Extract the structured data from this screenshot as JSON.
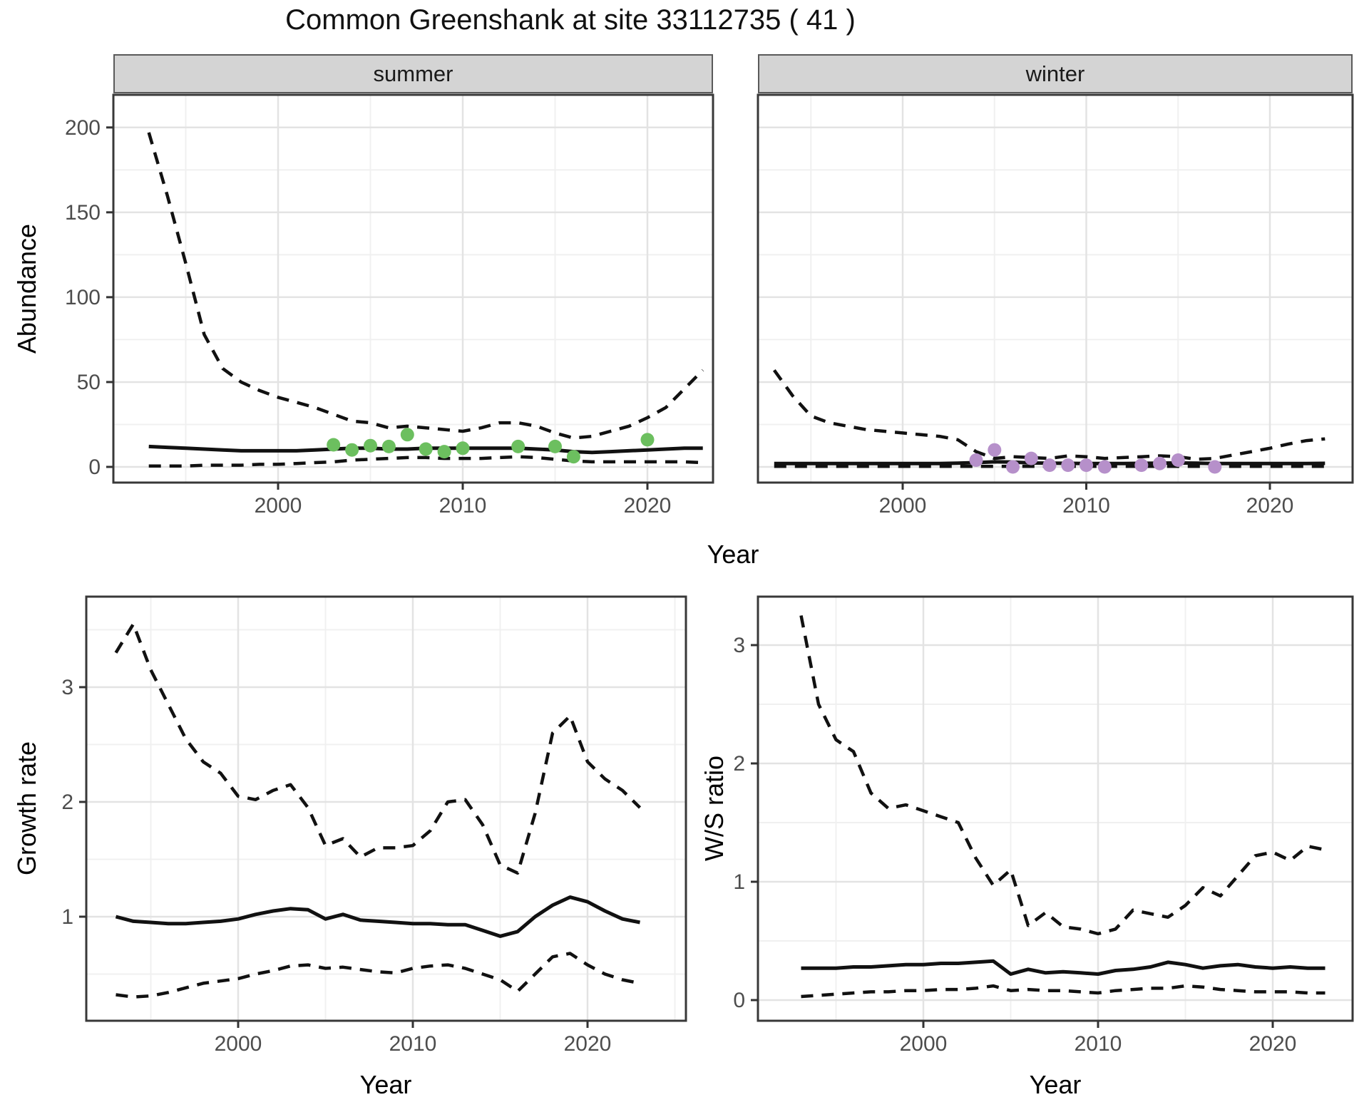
{
  "title": "Common Greenshank at site 33112735 ( 41 )",
  "facets": {
    "summer": "summer",
    "winter": "winter"
  },
  "axis_titles": {
    "abundance": "Abundance",
    "year_top": "Year",
    "growth": "Growth rate",
    "ws": "W/S ratio",
    "year_growth": "Year",
    "year_ws": "Year"
  },
  "colors": {
    "summer_points": "#6CBF5F",
    "winter_points": "#B690CA",
    "line": "#111111",
    "grid_major": "#e3e3e3",
    "grid_minor": "#f0f0f0",
    "panel_border": "#383838",
    "strip_fill": "#d4d4d4",
    "tick_text": "#4d4d4d"
  },
  "chart_data": [
    {
      "id": "summer",
      "type": "line",
      "facet_label": "summer",
      "xlabel": "Year",
      "ylabel": "Abundance",
      "xlim": [
        1991,
        2025
      ],
      "ylim": [
        0,
        219
      ],
      "x_ticks": [
        2000,
        2010,
        2020
      ],
      "y_ticks": [
        0,
        50,
        100,
        150,
        200
      ],
      "x": [
        1993,
        1994,
        1995,
        1996,
        1997,
        1998,
        1999,
        2000,
        2001,
        2002,
        2003,
        2004,
        2005,
        2006,
        2007,
        2008,
        2009,
        2010,
        2011,
        2012,
        2013,
        2014,
        2015,
        2016,
        2017,
        2018,
        2019,
        2020,
        2021,
        2022,
        2023
      ],
      "series": [
        {
          "name": "upper-ci",
          "style": "dashed",
          "values": [
            197,
            160,
            120,
            78,
            58,
            50,
            45,
            41,
            38,
            35,
            31,
            27,
            26,
            23,
            24,
            23,
            22,
            21,
            23,
            26,
            26,
            24,
            20,
            17,
            18,
            21,
            24,
            29,
            35,
            46,
            57
          ]
        },
        {
          "name": "median",
          "style": "solid",
          "values": [
            12,
            11.5,
            11,
            10.5,
            10,
            9.5,
            9.5,
            9.5,
            9.5,
            10,
            10.5,
            11,
            11,
            10.5,
            10.5,
            11,
            11,
            11,
            11,
            11,
            11,
            10.5,
            10,
            9,
            8.5,
            9,
            9.5,
            10,
            10.5,
            11,
            11
          ]
        },
        {
          "name": "lower-ci",
          "style": "dashed",
          "values": [
            0.5,
            0.5,
            0.5,
            1,
            1,
            1,
            1.5,
            1.5,
            2,
            2.5,
            3,
            4,
            4.5,
            5,
            5.5,
            5.5,
            5,
            5,
            5,
            5.5,
            6,
            5.5,
            4.5,
            3.5,
            3,
            3,
            3,
            3,
            3,
            3,
            2.5
          ]
        }
      ],
      "observed_points": {
        "color": "#6CBF5F",
        "data": [
          [
            2003,
            13
          ],
          [
            2004,
            10
          ],
          [
            2005,
            12.5
          ],
          [
            2006,
            12
          ],
          [
            2007,
            19
          ],
          [
            2008,
            10.5
          ],
          [
            2009,
            9
          ],
          [
            2010,
            11
          ],
          [
            2013,
            12
          ],
          [
            2015,
            12
          ],
          [
            2016,
            6
          ],
          [
            2020,
            16
          ]
        ]
      }
    },
    {
      "id": "winter",
      "type": "line",
      "facet_label": "winter",
      "xlabel": "Year",
      "ylabel": "Abundance",
      "xlim": [
        1991,
        2025
      ],
      "ylim": [
        0,
        219
      ],
      "x_ticks": [
        2000,
        2010,
        2020
      ],
      "y_ticks": [
        0,
        50,
        100,
        150,
        200
      ],
      "x": [
        1993,
        1994,
        1995,
        1996,
        1997,
        1998,
        1999,
        2000,
        2001,
        2002,
        2003,
        2004,
        2005,
        2006,
        2007,
        2008,
        2009,
        2010,
        2011,
        2012,
        2013,
        2014,
        2015,
        2016,
        2017,
        2018,
        2019,
        2020,
        2021,
        2022,
        2023
      ],
      "series": [
        {
          "name": "upper-ci",
          "style": "dashed",
          "values": [
            57,
            42,
            30,
            26,
            24,
            22,
            21,
            20,
            19,
            18,
            16,
            9,
            5,
            6,
            5.5,
            5,
            6.5,
            6,
            5,
            5.5,
            6,
            6.5,
            6,
            4.5,
            5,
            7,
            9,
            11,
            13.5,
            15.5,
            16.5
          ]
        },
        {
          "name": "median",
          "style": "solid",
          "values": [
            2,
            2,
            2,
            2,
            2,
            2,
            2,
            2,
            2,
            2,
            2.2,
            2.5,
            3,
            2.8,
            2.3,
            2.2,
            2.1,
            2,
            2,
            2,
            2.1,
            2.2,
            2.3,
            2.2,
            2,
            2,
            2,
            2,
            2,
            2,
            2.1
          ]
        },
        {
          "name": "lower-ci",
          "style": "dashed",
          "values": [
            0.3,
            0.3,
            0.3,
            0.3,
            0.3,
            0.3,
            0.3,
            0.3,
            0.3,
            0.3,
            0.3,
            0.3,
            0.3,
            0.3,
            0.3,
            0.3,
            0.3,
            0.3,
            0.3,
            0.3,
            0.3,
            0.3,
            0.3,
            0.3,
            0.3,
            0.3,
            0.3,
            0.3,
            0.3,
            0.3,
            0.3
          ]
        }
      ],
      "observed_points": {
        "color": "#B690CA",
        "data": [
          [
            2004,
            4
          ],
          [
            2005,
            10
          ],
          [
            2006,
            0
          ],
          [
            2007,
            5
          ],
          [
            2008,
            1
          ],
          [
            2009,
            1
          ],
          [
            2010,
            1
          ],
          [
            2011,
            0
          ],
          [
            2013,
            1
          ],
          [
            2014,
            2
          ],
          [
            2015,
            4
          ],
          [
            2017,
            0
          ]
        ]
      }
    },
    {
      "id": "growth",
      "type": "line",
      "facet_label": "",
      "xlabel": "Year",
      "ylabel": "Growth rate",
      "xlim": [
        1991,
        2025.5
      ],
      "ylim": [
        0.2,
        3.8
      ],
      "x_ticks": [
        2000,
        2010,
        2020
      ],
      "y_ticks": [
        1,
        2,
        3
      ],
      "x": [
        1993,
        1994,
        1995,
        1996,
        1997,
        1998,
        1999,
        2000,
        2001,
        2002,
        2003,
        2004,
        2005,
        2006,
        2007,
        2008,
        2009,
        2010,
        2011,
        2012,
        2013,
        2014,
        2015,
        2016,
        2017,
        2018,
        2019,
        2020,
        2021,
        2022,
        2023
      ],
      "series": [
        {
          "name": "upper-ci",
          "style": "dashed",
          "values": [
            3.3,
            3.55,
            3.15,
            2.85,
            2.55,
            2.35,
            2.25,
            2.05,
            2.02,
            2.1,
            2.15,
            1.95,
            1.62,
            1.68,
            1.52,
            1.6,
            1.6,
            1.62,
            1.75,
            2.0,
            2.02,
            1.8,
            1.45,
            1.38,
            1.9,
            2.6,
            2.75,
            2.35,
            2.2,
            2.1,
            1.95
          ]
        },
        {
          "name": "median",
          "style": "solid",
          "values": [
            1.0,
            0.96,
            0.95,
            0.94,
            0.94,
            0.95,
            0.96,
            0.98,
            1.02,
            1.05,
            1.07,
            1.06,
            0.98,
            1.02,
            0.97,
            0.96,
            0.95,
            0.94,
            0.94,
            0.93,
            0.93,
            0.88,
            0.83,
            0.87,
            1.0,
            1.1,
            1.17,
            1.13,
            1.05,
            0.98,
            0.95
          ]
        },
        {
          "name": "lower-ci",
          "style": "dashed",
          "values": [
            0.32,
            0.3,
            0.31,
            0.34,
            0.38,
            0.42,
            0.44,
            0.46,
            0.5,
            0.53,
            0.57,
            0.58,
            0.55,
            0.56,
            0.54,
            0.52,
            0.51,
            0.55,
            0.57,
            0.58,
            0.55,
            0.5,
            0.45,
            0.35,
            0.5,
            0.65,
            0.68,
            0.58,
            0.5,
            0.45,
            0.42
          ]
        }
      ],
      "observed_points": {
        "color": "",
        "data": []
      }
    },
    {
      "id": "ws",
      "type": "line",
      "facet_label": "",
      "xlabel": "Year",
      "ylabel": "W/S ratio",
      "xlim": [
        1991,
        2025
      ],
      "ylim": [
        -0.15,
        3.45
      ],
      "x_ticks": [
        2000,
        2010,
        2020
      ],
      "y_ticks": [
        0,
        1,
        2,
        3
      ],
      "x": [
        1993,
        1994,
        1995,
        1996,
        1997,
        1998,
        1999,
        2000,
        2001,
        2002,
        2003,
        2004,
        2005,
        2006,
        2007,
        2008,
        2009,
        2010,
        2011,
        2012,
        2013,
        2014,
        2015,
        2016,
        2017,
        2018,
        2019,
        2020,
        2021,
        2022,
        2023
      ],
      "series": [
        {
          "name": "upper-ci",
          "style": "dashed",
          "values": [
            3.25,
            2.5,
            2.2,
            2.1,
            1.75,
            1.62,
            1.65,
            1.6,
            1.55,
            1.5,
            1.2,
            0.97,
            1.1,
            0.63,
            0.74,
            0.62,
            0.6,
            0.56,
            0.6,
            0.76,
            0.73,
            0.7,
            0.8,
            0.95,
            0.88,
            1.05,
            1.22,
            1.25,
            1.18,
            1.3,
            1.27
          ]
        },
        {
          "name": "median",
          "style": "solid",
          "values": [
            0.27,
            0.27,
            0.27,
            0.28,
            0.28,
            0.29,
            0.3,
            0.3,
            0.31,
            0.31,
            0.32,
            0.33,
            0.22,
            0.26,
            0.23,
            0.24,
            0.23,
            0.22,
            0.25,
            0.26,
            0.28,
            0.32,
            0.3,
            0.27,
            0.29,
            0.3,
            0.28,
            0.27,
            0.28,
            0.27,
            0.27
          ]
        },
        {
          "name": "lower-ci",
          "style": "dashed",
          "values": [
            0.03,
            0.04,
            0.05,
            0.06,
            0.07,
            0.07,
            0.08,
            0.08,
            0.09,
            0.09,
            0.1,
            0.12,
            0.08,
            0.09,
            0.08,
            0.08,
            0.07,
            0.06,
            0.08,
            0.09,
            0.1,
            0.1,
            0.12,
            0.11,
            0.09,
            0.08,
            0.07,
            0.07,
            0.07,
            0.06,
            0.06
          ]
        }
      ],
      "observed_points": {
        "color": "",
        "data": []
      }
    }
  ]
}
